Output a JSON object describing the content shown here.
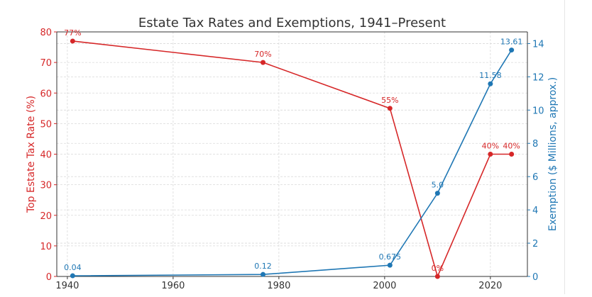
{
  "chart_data": {
    "type": "line",
    "title": "Estate Tax Rates and Exemptions, 1941–Present",
    "xlabel": "",
    "xlim": [
      1938,
      2027
    ],
    "x_ticks": [
      1940,
      1960,
      1980,
      2000,
      2020
    ],
    "grid": true,
    "colors": {
      "rate": "#d62728",
      "exemption": "#1f77b4",
      "grid": "#d9d9d9",
      "axis": "#333333"
    },
    "left_axis": {
      "label": "Top Estate Tax Rate (%)",
      "ylim": [
        0,
        80
      ],
      "ticks": [
        0,
        10,
        20,
        30,
        40,
        50,
        60,
        70,
        80
      ]
    },
    "right_axis": {
      "label": "Exemption ($ Millions, approx.)",
      "ylim": [
        0,
        14.7
      ],
      "ticks": [
        0,
        2,
        4,
        6,
        8,
        10,
        12,
        14
      ]
    },
    "series": [
      {
        "key": "rate",
        "axis": "left",
        "x": [
          1941,
          1977,
          2001,
          2010,
          2020,
          2024
        ],
        "values": [
          77,
          70,
          55,
          0,
          40,
          40
        ],
        "labels": [
          "77%",
          "70%",
          "55%",
          "0%",
          "40%",
          "40%"
        ]
      },
      {
        "key": "exemption",
        "axis": "right",
        "x": [
          1941,
          1977,
          2001,
          2010,
          2020,
          2024
        ],
        "values": [
          0.04,
          0.12,
          0.675,
          5.0,
          11.58,
          13.61
        ],
        "labels": [
          "0.04",
          "0.12",
          "0.675",
          "5.0",
          "11.58",
          "13.61"
        ]
      }
    ]
  }
}
